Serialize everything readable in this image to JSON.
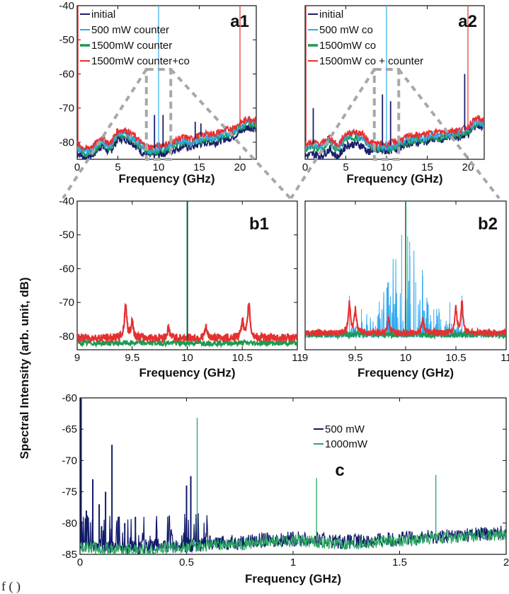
{
  "figure": {
    "shared_ylabel": "Spectral Intensity (arb. unit,  dB)",
    "caption_fragment": "f        (         )                                                                                                                  "
  },
  "colors": {
    "initial": "#1b1f6e",
    "p500": "#33aaee",
    "p1500": "#1e9950",
    "red": "#e53030",
    "dash": "#a8a8a8",
    "c500": "#101a6a",
    "c1000": "#2aa860"
  },
  "chart_data": [
    {
      "id": "a1",
      "type": "line",
      "panel_label": "a1",
      "xlabel": "Frequency (GHz)",
      "ylabel": "",
      "xlim": [
        0,
        22
      ],
      "ylim": [
        -85,
        -40
      ],
      "xticks": [
        0,
        5,
        10,
        15,
        20
      ],
      "yticks": [
        -40,
        -50,
        -60,
        -70,
        -80
      ],
      "zoom_box": [
        8.5,
        11.5
      ],
      "legend_position": "top-left",
      "series": [
        {
          "name": "initial",
          "color_key": "initial"
        },
        {
          "name": "500 mW   counter",
          "color_key": "p500"
        },
        {
          "name": "1500mW  counter",
          "color_key": "p1500"
        },
        {
          "name": "1500mW  counter+co",
          "color_key": "red"
        }
      ],
      "baseline": {
        "x": [
          0,
          1,
          2,
          3,
          4,
          5,
          6,
          7,
          8,
          9,
          10,
          11,
          12,
          13,
          14,
          15,
          16,
          17,
          18,
          19,
          20,
          21,
          22
        ],
        "y": [
          -81,
          -82.5,
          -81.5,
          -79,
          -81,
          -77,
          -77,
          -78.5,
          -81,
          -82,
          -81.5,
          -81,
          -80,
          -79,
          -79.5,
          -78.5,
          -78,
          -78,
          -77,
          -76.5,
          -75,
          -73.5,
          -74
        ]
      },
      "spikes": [
        {
          "x": 0.1,
          "y": -40
        },
        {
          "x": 10,
          "y": -40
        },
        {
          "x": 20,
          "y": -40
        },
        {
          "x": 9.5,
          "y": -72
        },
        {
          "x": 10.55,
          "y": -72
        },
        {
          "x": 14.5,
          "y": -74
        },
        {
          "x": 15.2,
          "y": -74.5
        }
      ]
    },
    {
      "id": "a2",
      "type": "line",
      "panel_label": "a2",
      "xlabel": "Frequency (GHz)",
      "ylabel": "",
      "xlim": [
        0,
        22
      ],
      "ylim": [
        -85,
        -40
      ],
      "xticks": [
        0,
        5,
        10,
        15,
        20
      ],
      "yticks": [],
      "zoom_box": [
        8.5,
        11.5
      ],
      "legend_position": "top-left",
      "series": [
        {
          "name": "initial",
          "color_key": "initial"
        },
        {
          "name": "500 mW co",
          "color_key": "p500"
        },
        {
          "name": "1500mW co",
          "color_key": "p1500"
        },
        {
          "name": "1500mW co + counter",
          "color_key": "red"
        }
      ],
      "baseline": {
        "x": [
          0,
          1,
          2,
          3,
          4,
          5,
          6,
          7,
          8,
          9,
          10,
          11,
          12,
          13,
          14,
          15,
          16,
          17,
          18,
          19,
          20,
          21,
          22
        ],
        "y": [
          -81,
          -80.5,
          -81,
          -79,
          -81.5,
          -78,
          -77.5,
          -78,
          -80.5,
          -81,
          -81,
          -80.5,
          -79.5,
          -78.5,
          -78.5,
          -78,
          -77.5,
          -77.5,
          -77,
          -77,
          -76,
          -73.5,
          -74
        ]
      },
      "spikes": [
        {
          "x": 0.1,
          "y": -40
        },
        {
          "x": 10,
          "y": -40
        },
        {
          "x": 20,
          "y": -40
        },
        {
          "x": 9.5,
          "y": -66
        },
        {
          "x": 10.5,
          "y": -68
        },
        {
          "x": 19.6,
          "y": -60
        },
        {
          "x": 1.0,
          "y": -70
        }
      ]
    },
    {
      "id": "b1",
      "type": "line",
      "panel_label": "b1",
      "xlabel": "Frequency (GHz)",
      "ylabel": "",
      "xlim": [
        9,
        11
      ],
      "ylim": [
        -84,
        -40
      ],
      "xticks": [
        9,
        9.5,
        10,
        10.5,
        11
      ],
      "yticks": [
        -40,
        -50,
        -60,
        -70,
        -80
      ],
      "series": [
        {
          "name": "initial",
          "color_key": "initial"
        },
        {
          "name": "1500mW  counter",
          "color_key": "p1500"
        },
        {
          "name": "1500mW  counter+co",
          "color_key": "red"
        }
      ],
      "baseline_red": -80.5,
      "baseline_green": -82,
      "peaks": [
        {
          "x": 9.44,
          "y": -70.5
        },
        {
          "x": 9.5,
          "y": -75.5
        },
        {
          "x": 9.83,
          "y": -77.5
        },
        {
          "x": 10.0,
          "y": -40
        },
        {
          "x": 10.17,
          "y": -77.5
        },
        {
          "x": 10.5,
          "y": -75
        },
        {
          "x": 10.56,
          "y": -70
        }
      ]
    },
    {
      "id": "b2",
      "type": "line",
      "panel_label": "b2",
      "xlabel": "Frequency (GHz)",
      "ylabel": "",
      "xlim": [
        9,
        11
      ],
      "ylim": [
        -84,
        -40
      ],
      "xticks": [
        9,
        9.5,
        10,
        10.5,
        11
      ],
      "yticks": [],
      "series": [
        {
          "name": "500 mW co",
          "color_key": "p500"
        },
        {
          "name": "1500mW co",
          "color_key": "p1500"
        },
        {
          "name": "1500mW co + counter",
          "color_key": "red"
        }
      ],
      "baseline_red": -79,
      "peaks_blue": [
        {
          "x": 9.44,
          "y": -68
        },
        {
          "x": 9.56,
          "y": -72
        },
        {
          "x": 9.72,
          "y": -74
        },
        {
          "x": 9.83,
          "y": -64
        },
        {
          "x": 9.9,
          "y": -66
        },
        {
          "x": 9.96,
          "y": -50
        },
        {
          "x": 10.0,
          "y": -40
        },
        {
          "x": 10.04,
          "y": -52
        },
        {
          "x": 10.1,
          "y": -64
        },
        {
          "x": 10.17,
          "y": -62
        },
        {
          "x": 10.28,
          "y": -72
        },
        {
          "x": 10.44,
          "y": -70
        },
        {
          "x": 10.56,
          "y": -68
        },
        {
          "x": 9.65,
          "y": -76
        },
        {
          "x": 10.35,
          "y": -75
        }
      ],
      "peaks_red": [
        {
          "x": 9.44,
          "y": -70
        },
        {
          "x": 9.5,
          "y": -72
        },
        {
          "x": 9.83,
          "y": -75
        },
        {
          "x": 10.0,
          "y": -40
        },
        {
          "x": 10.17,
          "y": -75
        },
        {
          "x": 10.5,
          "y": -72
        },
        {
          "x": 10.56,
          "y": -70
        }
      ]
    },
    {
      "id": "c",
      "type": "line",
      "panel_label": "c",
      "xlabel": "Frequency (GHz)",
      "ylabel": "",
      "xlim": [
        0,
        2
      ],
      "ylim": [
        -85,
        -60
      ],
      "xticks": [
        0,
        0.5,
        1,
        1.5,
        2
      ],
      "xtick_labels": [
        "0",
        "0.5",
        "1",
        "1.5",
        "2"
      ],
      "yticks": [
        -60,
        -65,
        -70,
        -75,
        -80,
        -85
      ],
      "legend_position": "top-center",
      "series": [
        {
          "name": "500 mW",
          "color_key": "c500"
        },
        {
          "name": "1000mW",
          "color_key": "c1000"
        }
      ],
      "baseline": {
        "x": [
          0,
          0.25,
          0.5,
          0.75,
          1.0,
          1.25,
          1.5,
          1.75,
          2.0
        ],
        "y": [
          -83.5,
          -84,
          -83.5,
          -83,
          -82.5,
          -83,
          -82.5,
          -82,
          -81.5
        ]
      },
      "spikes_500": [
        {
          "x": 0.005,
          "y": -60
        },
        {
          "x": 0.03,
          "y": -78
        },
        {
          "x": 0.06,
          "y": -73
        },
        {
          "x": 0.09,
          "y": -77
        },
        {
          "x": 0.12,
          "y": -75
        },
        {
          "x": 0.15,
          "y": -67.5
        },
        {
          "x": 0.18,
          "y": -79
        },
        {
          "x": 0.21,
          "y": -80
        },
        {
          "x": 0.26,
          "y": -79
        },
        {
          "x": 0.36,
          "y": -81
        },
        {
          "x": 0.5,
          "y": -74
        },
        {
          "x": 0.52,
          "y": -72.5
        },
        {
          "x": 0.61,
          "y": -82
        }
      ],
      "spikes_1000": [
        {
          "x": 0.55,
          "y": -63.2
        },
        {
          "x": 1.11,
          "y": -72.8
        },
        {
          "x": 1.67,
          "y": -72.3
        }
      ]
    }
  ]
}
